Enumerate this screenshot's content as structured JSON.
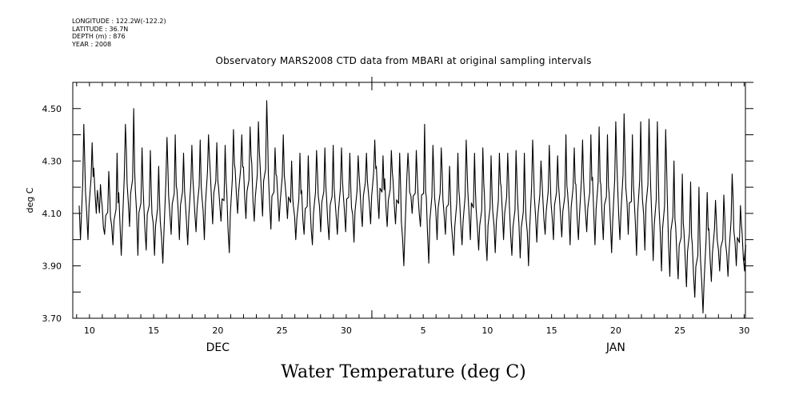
{
  "metadata": {
    "longitude": "LONGITUDE : 122.2W(-122.2)",
    "latitude": "LATITUDE : 36.7N",
    "depth": "DEPTH (m) : 876",
    "year": "YEAR : 2008"
  },
  "chart_data": {
    "type": "line",
    "title": "Observatory MARS2008 CTD data from MBARI at original sampling intervals",
    "bottom_title": "Water Temperature (deg C)",
    "ylabel": "deg C",
    "ylim": [
      3.7,
      4.6
    ],
    "yticks": [
      "3.70",
      "3.90",
      "4.10",
      "4.30",
      "4.50"
    ],
    "xlim_days": [
      8.7,
      61.1
    ],
    "xticks": [
      {
        "day": 10,
        "label": "10"
      },
      {
        "day": 15,
        "label": "15"
      },
      {
        "day": 20,
        "label": "20"
      },
      {
        "day": 25,
        "label": "25"
      },
      {
        "day": 30,
        "label": "30"
      },
      {
        "day": 36,
        "label": "5"
      },
      {
        "day": 41,
        "label": "10"
      },
      {
        "day": 46,
        "label": "15"
      },
      {
        "day": 51,
        "label": "20"
      },
      {
        "day": 56,
        "label": "25"
      },
      {
        "day": 61,
        "label": "30"
      }
    ],
    "months": [
      {
        "label": "DEC",
        "day": 20
      },
      {
        "label": "JAN",
        "day": 51
      }
    ],
    "month_boundary_day": 32,
    "series": [
      {
        "color": "#000000",
        "approximate_peaks": [
          4.44,
          4.37,
          4.21,
          4.26,
          4.33,
          4.44,
          4.5,
          4.35,
          4.34,
          4.28,
          4.39,
          4.4,
          4.33,
          4.36,
          4.38,
          4.4,
          4.37,
          4.36,
          4.42,
          4.4,
          4.43,
          4.45,
          4.53,
          4.35,
          4.4,
          4.3,
          4.33,
          4.32,
          4.34,
          4.35,
          4.36,
          4.35,
          4.33,
          4.32,
          4.33,
          4.38,
          4.32,
          4.34,
          4.33,
          4.33,
          4.34,
          4.44,
          4.36,
          4.35,
          4.28,
          4.33,
          4.38,
          4.33,
          4.35,
          4.32,
          4.33,
          4.33,
          4.34,
          4.33,
          4.38,
          4.3,
          4.36,
          4.32,
          4.4,
          4.35,
          4.38,
          4.4,
          4.43,
          4.4,
          4.45,
          4.48,
          4.4,
          4.45,
          4.46,
          4.45,
          4.42,
          4.3,
          4.25,
          4.22,
          4.2,
          4.18,
          4.15,
          4.17,
          4.25,
          4.13
        ],
        "approximate_troughs": [
          4.0,
          4.1,
          4.02,
          3.98,
          3.94,
          4.05,
          3.94,
          3.96,
          3.94,
          3.91,
          4.02,
          4.0,
          3.98,
          4.03,
          4.0,
          4.06,
          4.07,
          3.95,
          4.1,
          4.08,
          4.07,
          4.09,
          4.04,
          4.07,
          4.08,
          4.0,
          4.02,
          3.98,
          4.03,
          4.0,
          4.02,
          4.03,
          3.99,
          4.05,
          4.06,
          4.08,
          4.05,
          4.06,
          3.9,
          4.1,
          4.05,
          3.91,
          4.0,
          4.02,
          3.94,
          3.98,
          4.0,
          3.96,
          3.92,
          3.95,
          4.0,
          3.94,
          3.93,
          3.9,
          3.99,
          4.02,
          4.0,
          4.01,
          3.98,
          4.0,
          4.03,
          3.98,
          4.0,
          3.95,
          4.0,
          4.02,
          3.94,
          3.96,
          3.92,
          3.88,
          3.86,
          3.85,
          3.82,
          3.78,
          3.72,
          3.84,
          3.88,
          3.86,
          3.9,
          3.88
        ]
      }
    ],
    "grid": false,
    "legend": "none"
  }
}
